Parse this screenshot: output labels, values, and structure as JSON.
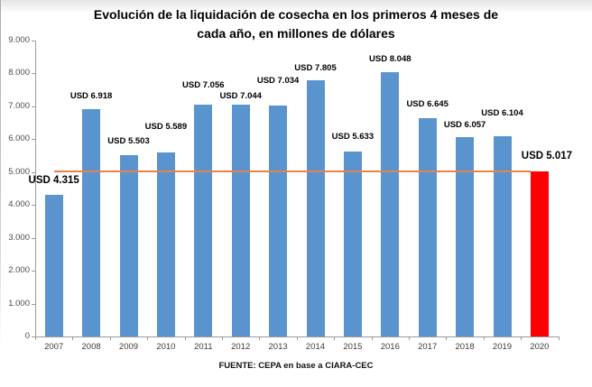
{
  "chart_data": {
    "type": "bar",
    "title": "Evolución de la liquidación de cosecha en los primeros 4 meses de cada año, en millones de dólares",
    "title_lines": [
      "Evolución de la liquidación de cosecha en los primeros 4 meses de",
      "cada año, en millones de dólares"
    ],
    "source": "FUENTE: CEPA en base a CIARA-CEC",
    "categories": [
      "2007",
      "2008",
      "2009",
      "2010",
      "2011",
      "2012",
      "2013",
      "2014",
      "2015",
      "2016",
      "2017",
      "2018",
      "2019",
      "2020"
    ],
    "values": [
      4315,
      6918,
      5503,
      5589,
      7056,
      7044,
      7034,
      7805,
      5633,
      8048,
      6645,
      6057,
      6104,
      5017
    ],
    "bar_labels": [
      "USD 4.315",
      "USD 6.918",
      "USD 5.503",
      "USD 5.589",
      "USD 7.056",
      "USD 7.044",
      "USD 7.034",
      "USD 7.805",
      "USD 5.633",
      "USD 8.048",
      "USD 6.645",
      "USD 6.057",
      "USD 6.104",
      "USD 5.017"
    ],
    "ylim": [
      0,
      9000
    ],
    "ytick_step": 1000,
    "ytick_labels": [
      "0",
      "1.000",
      "2.000",
      "3.000",
      "4.000",
      "5.000",
      "6.000",
      "7.000",
      "8.000",
      "9.000"
    ],
    "grid": "off",
    "legend": "none",
    "highlight_index": 13,
    "reference_line_value": 5017,
    "colors": {
      "bar": "#5A94CE",
      "highlight": "#FF0000",
      "reference_line": "#E8824A",
      "axis": "#9B9B9B",
      "ytick_text": "#4D4D4D",
      "xtick_text": "#3D3D3D",
      "label_text": "#000000"
    },
    "label_layout": {
      "gaps": [
        9,
        8,
        9,
        22,
        15,
        3,
        21,
        7,
        10,
        8,
        9,
        7,
        19,
        10
      ],
      "dx": [
        0,
        0,
        0,
        0,
        0,
        0,
        0,
        0,
        0,
        0,
        0,
        0,
        0,
        8
      ],
      "big_indices": [
        0,
        13
      ]
    }
  }
}
